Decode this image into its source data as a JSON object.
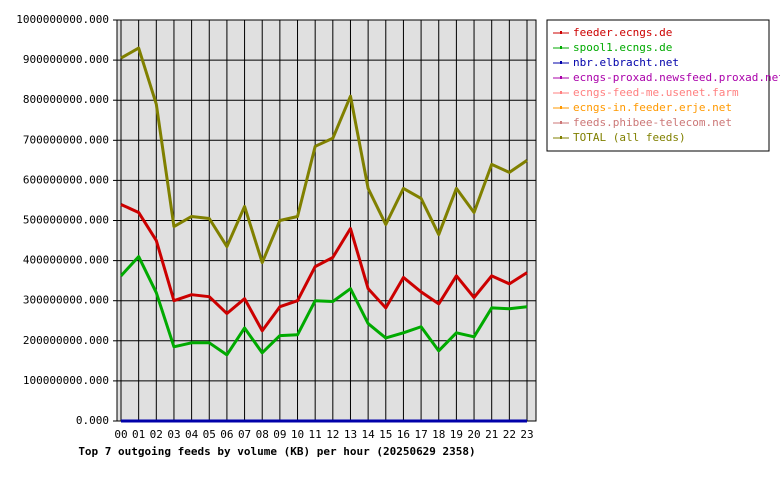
{
  "chart_data": {
    "type": "line",
    "title": "Top 7 outgoing feeds by volume (KB) per hour (20250629 2358)",
    "categories": [
      "00",
      "01",
      "02",
      "03",
      "04",
      "05",
      "06",
      "07",
      "08",
      "09",
      "10",
      "11",
      "12",
      "13",
      "14",
      "15",
      "16",
      "17",
      "18",
      "19",
      "20",
      "21",
      "22",
      "23"
    ],
    "ylim": [
      0,
      1000000000
    ],
    "yticks": [
      {
        "value": 0,
        "label": "0.000"
      },
      {
        "value": 100000000,
        "label": "100000000.000"
      },
      {
        "value": 200000000,
        "label": "200000000.000"
      },
      {
        "value": 300000000,
        "label": "300000000.000"
      },
      {
        "value": 400000000,
        "label": "400000000.000"
      },
      {
        "value": 500000000,
        "label": "500000000.000"
      },
      {
        "value": 600000000,
        "label": "600000000.000"
      },
      {
        "value": 700000000,
        "label": "700000000.000"
      },
      {
        "value": 800000000,
        "label": "800000000.000"
      },
      {
        "value": 900000000,
        "label": "900000000.000"
      },
      {
        "value": 1000000000,
        "label": "1000000000.000"
      }
    ],
    "grid": true,
    "series": [
      {
        "name": "feeder.ecngs.de",
        "color": "#cc0000",
        "values": [
          540000000,
          520000000,
          450000000,
          300000000,
          315000000,
          310000000,
          268000000,
          305000000,
          225000000,
          285000000,
          300000000,
          385000000,
          408000000,
          480000000,
          330000000,
          282000000,
          358000000,
          322000000,
          292000000,
          362000000,
          308000000,
          362000000,
          342000000,
          370000000
        ]
      },
      {
        "name": "spool1.ecngs.de",
        "color": "#00aa00",
        "values": [
          362000000,
          410000000,
          320000000,
          185000000,
          195000000,
          195000000,
          165000000,
          232000000,
          170000000,
          213000000,
          215000000,
          300000000,
          298000000,
          330000000,
          243000000,
          207000000,
          220000000,
          235000000,
          175000000,
          220000000,
          210000000,
          282000000,
          280000000,
          285000000
        ]
      },
      {
        "name": "nbr.elbracht.net",
        "color": "#0000aa",
        "values": [
          0,
          0,
          0,
          0,
          0,
          0,
          0,
          0,
          0,
          0,
          0,
          0,
          0,
          0,
          0,
          0,
          0,
          0,
          0,
          0,
          0,
          0,
          0,
          0
        ]
      },
      {
        "name": "ecngs-proxad.newsfeed.proxad.net",
        "color": "#aa00aa",
        "values": [
          0,
          0,
          0,
          0,
          0,
          0,
          0,
          0,
          0,
          0,
          0,
          0,
          0,
          0,
          0,
          0,
          0,
          0,
          0,
          0,
          0,
          0,
          0,
          0
        ]
      },
      {
        "name": "ecngs-feed-me.usenet.farm",
        "color": "#ff8080",
        "values": [
          0,
          0,
          0,
          0,
          0,
          0,
          0,
          0,
          0,
          0,
          0,
          0,
          0,
          0,
          0,
          0,
          0,
          0,
          0,
          0,
          0,
          0,
          0,
          0
        ]
      },
      {
        "name": "ecngs-in.feeder.erje.net",
        "color": "#ff9900",
        "values": [
          0,
          0,
          0,
          0,
          0,
          0,
          0,
          0,
          0,
          0,
          0,
          0,
          0,
          0,
          0,
          0,
          0,
          0,
          0,
          0,
          0,
          0,
          0,
          0
        ]
      },
      {
        "name": "feeds.phibee-telecom.net",
        "color": "#cc7777",
        "values": [
          0,
          0,
          0,
          0,
          0,
          0,
          0,
          0,
          0,
          0,
          0,
          0,
          0,
          0,
          0,
          0,
          0,
          0,
          0,
          0,
          0,
          0,
          0,
          0
        ]
      },
      {
        "name": "TOTAL (all feeds)",
        "color": "#808000",
        "values": [
          905000000,
          930000000,
          790000000,
          485000000,
          510000000,
          505000000,
          435000000,
          535000000,
          395000000,
          500000000,
          510000000,
          685000000,
          705000000,
          810000000,
          580000000,
          490000000,
          580000000,
          555000000,
          465000000,
          580000000,
          520000000,
          640000000,
          620000000,
          650000000
        ]
      }
    ]
  }
}
